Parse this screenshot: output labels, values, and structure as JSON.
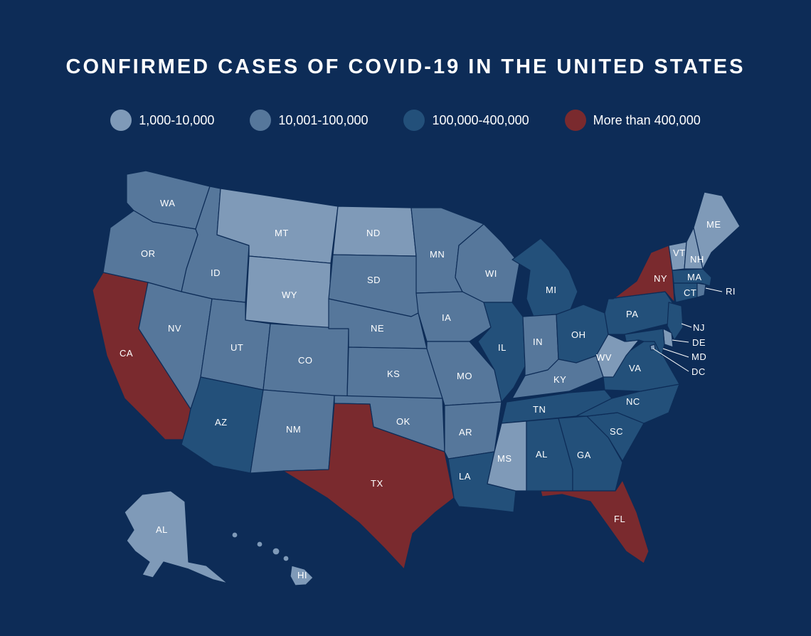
{
  "title": "CONFIRMED CASES OF COVID-19 IN THE UNITED STATES",
  "colors": {
    "background": "#0d2c57",
    "tier1": "#7f9ab8",
    "tier2": "#56779b",
    "tier3": "#23507a",
    "tier4": "#7a2a2e"
  },
  "legend": [
    {
      "label": "1,000-10,000",
      "color": "#7f9ab8"
    },
    {
      "label": "10,001-100,000",
      "color": "#56779b"
    },
    {
      "label": "100,000-400,000",
      "color": "#23507a"
    },
    {
      "label": "More than 400,000",
      "color": "#7a2a2e"
    }
  ],
  "states": {
    "WA": {
      "label": "WA",
      "tier": 2
    },
    "OR": {
      "label": "OR",
      "tier": 2
    },
    "CA": {
      "label": "CA",
      "tier": 4
    },
    "ID": {
      "label": "ID",
      "tier": 2
    },
    "NV": {
      "label": "NV",
      "tier": 2
    },
    "MT": {
      "label": "MT",
      "tier": 1
    },
    "WY": {
      "label": "WY",
      "tier": 1
    },
    "UT": {
      "label": "UT",
      "tier": 2
    },
    "AZ": {
      "label": "AZ",
      "tier": 3
    },
    "CO": {
      "label": "CO",
      "tier": 2
    },
    "NM": {
      "label": "NM",
      "tier": 2
    },
    "ND": {
      "label": "ND",
      "tier": 1
    },
    "SD": {
      "label": "SD",
      "tier": 2
    },
    "NE": {
      "label": "NE",
      "tier": 2
    },
    "KS": {
      "label": "KS",
      "tier": 2
    },
    "OK": {
      "label": "OK",
      "tier": 2
    },
    "TX": {
      "label": "TX",
      "tier": 4
    },
    "MN": {
      "label": "MN",
      "tier": 2
    },
    "IA": {
      "label": "IA",
      "tier": 2
    },
    "MO": {
      "label": "MO",
      "tier": 2
    },
    "AR": {
      "label": "AR",
      "tier": 2
    },
    "LA": {
      "label": "LA",
      "tier": 3
    },
    "WI": {
      "label": "WI",
      "tier": 2
    },
    "IL": {
      "label": "IL",
      "tier": 3
    },
    "MI": {
      "label": "MI",
      "tier": 3
    },
    "IN": {
      "label": "IN",
      "tier": 2
    },
    "OH": {
      "label": "OH",
      "tier": 3
    },
    "KY": {
      "label": "KY",
      "tier": 2
    },
    "TN": {
      "label": "TN",
      "tier": 3
    },
    "MS": {
      "label": "MS",
      "tier": 1
    },
    "AL": {
      "label": "AL",
      "tier": 3
    },
    "GA": {
      "label": "GA",
      "tier": 3
    },
    "FL": {
      "label": "FL",
      "tier": 4
    },
    "SC": {
      "label": "SC",
      "tier": 3
    },
    "NC": {
      "label": "NC",
      "tier": 3
    },
    "VA": {
      "label": "VA",
      "tier": 3
    },
    "WV": {
      "label": "WV",
      "tier": 1
    },
    "PA": {
      "label": "PA",
      "tier": 3
    },
    "NY": {
      "label": "NY",
      "tier": 4
    },
    "VT": {
      "label": "VT",
      "tier": 1
    },
    "NH": {
      "label": "NH",
      "tier": 1
    },
    "ME": {
      "label": "ME",
      "tier": 1
    },
    "MA": {
      "label": "MA",
      "tier": 3
    },
    "CT": {
      "label": "CT",
      "tier": 3
    },
    "RI": {
      "label": "RI",
      "tier": 2
    },
    "NJ": {
      "label": "NJ",
      "tier": 3
    },
    "DE": {
      "label": "DE",
      "tier": 1
    },
    "MD": {
      "label": "MD",
      "tier": 3
    },
    "DC": {
      "label": "DC",
      "tier": 1
    },
    "AK": {
      "label": "AL",
      "tier": 1
    },
    "HI": {
      "label": "HI",
      "tier": 1
    }
  }
}
